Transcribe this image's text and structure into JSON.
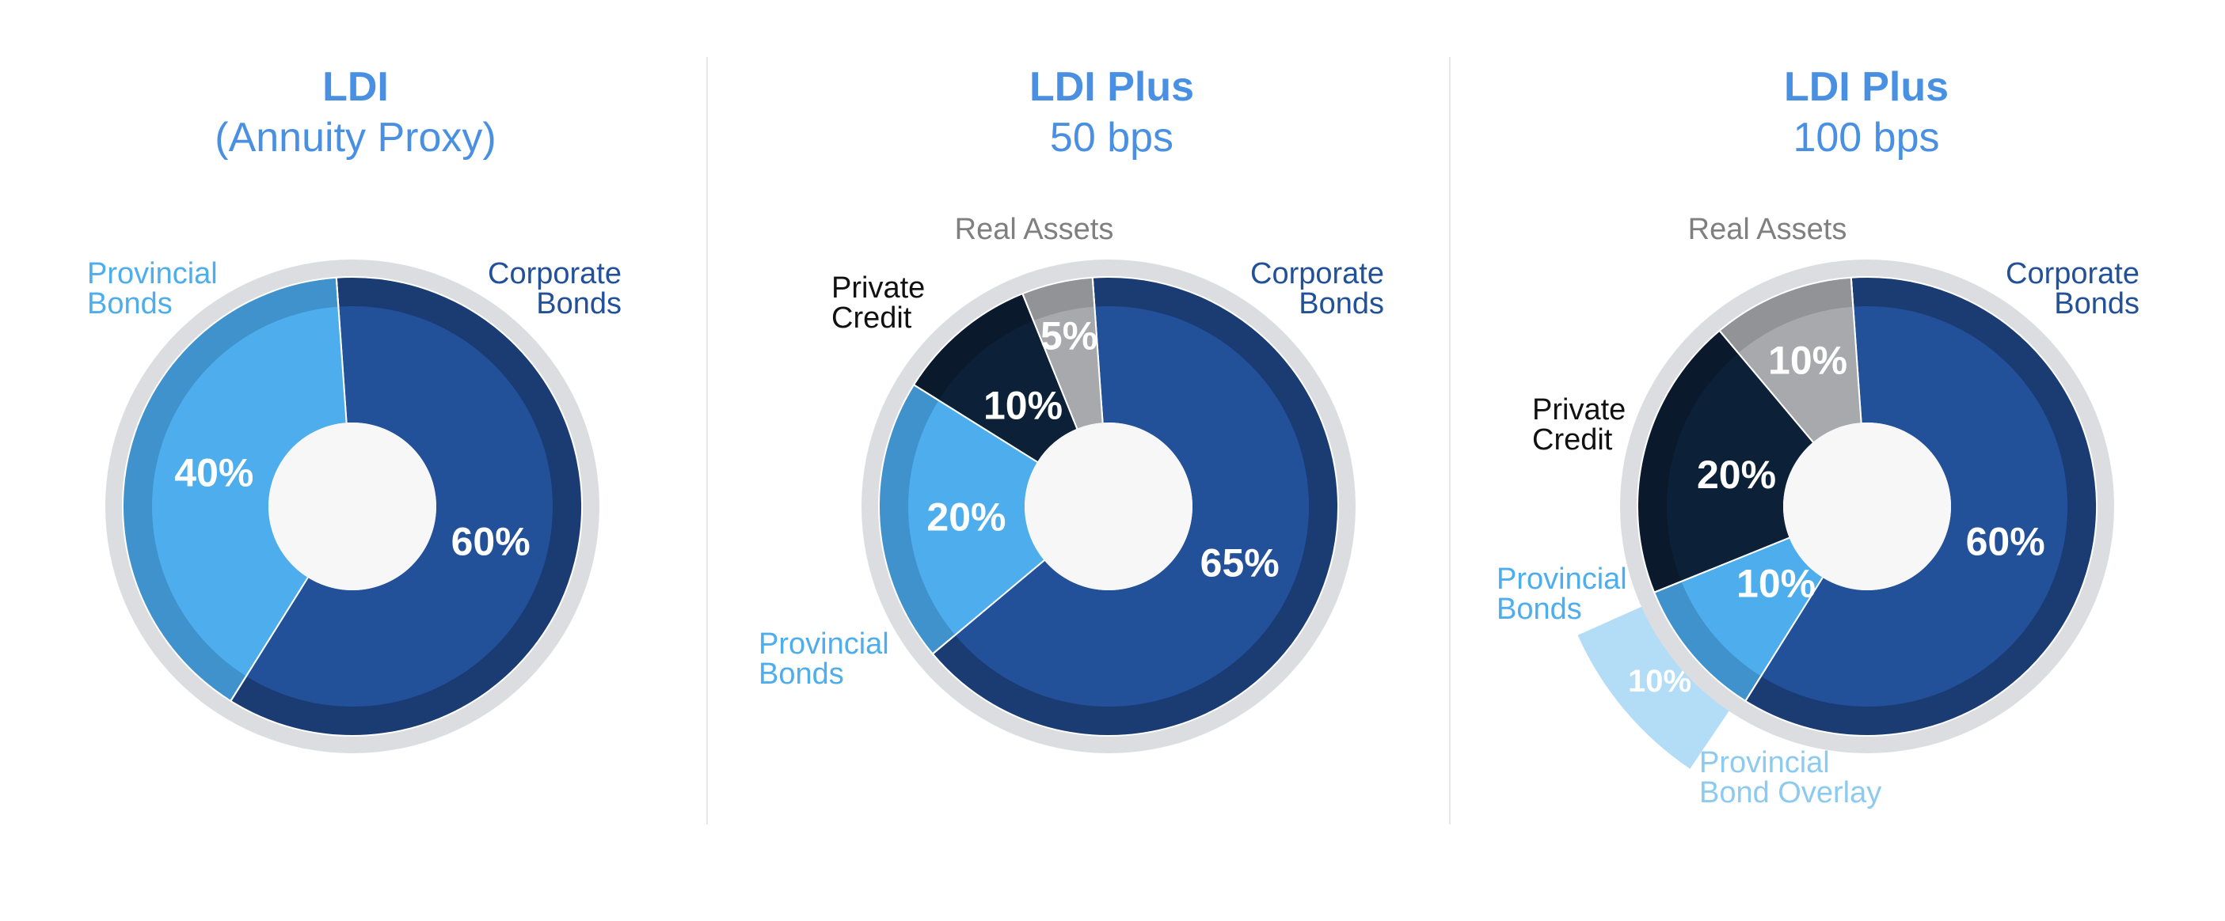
{
  "colors": {
    "corporate": "#22519a",
    "corporate_ring": "#1b3c73",
    "provincial": "#4eadec",
    "provincial_ring": "#3f92cb",
    "private": "#0c2138",
    "private_ring": "#0a1a2c",
    "real": "#a8a9ad",
    "real_ring": "#929397",
    "overlay": "#b3ddf6",
    "outer_ring": "#dcdde0",
    "hole": "#f7f7f8",
    "title": "#4a90e2",
    "label_corporate": "#22519a",
    "label_provincial": "#4eadec",
    "label_private": "#111111",
    "label_real": "#7f7f7f",
    "label_overlay": "#8ccaf0"
  },
  "chart_data": [
    {
      "type": "pie",
      "title": "LDI",
      "subtitle": "(Annuity Proxy)",
      "slices": [
        {
          "name": "Corporate Bonds",
          "value": 60,
          "label": "60%"
        },
        {
          "name": "Provincial Bonds",
          "value": 40,
          "label": "40%"
        }
      ]
    },
    {
      "type": "pie",
      "title": "LDI Plus",
      "subtitle": "50 bps",
      "slices": [
        {
          "name": "Corporate Bonds",
          "value": 65,
          "label": "65%"
        },
        {
          "name": "Provincial Bonds",
          "value": 20,
          "label": "20%"
        },
        {
          "name": "Private Credit",
          "value": 10,
          "label": "10%"
        },
        {
          "name": "Real Assets",
          "value": 5,
          "label": "5%"
        }
      ]
    },
    {
      "type": "pie",
      "title": "LDI Plus",
      "subtitle": "100 bps",
      "slices": [
        {
          "name": "Corporate Bonds",
          "value": 60,
          "label": "60%"
        },
        {
          "name": "Provincial Bonds",
          "value": 10,
          "label": "10%"
        },
        {
          "name": "Private Credit",
          "value": 20,
          "label": "20%"
        },
        {
          "name": "Real Assets",
          "value": 10,
          "label": "10%"
        }
      ],
      "overlay": {
        "name": "Provincial Bond Overlay",
        "value": 10,
        "label": "10%"
      }
    }
  ]
}
